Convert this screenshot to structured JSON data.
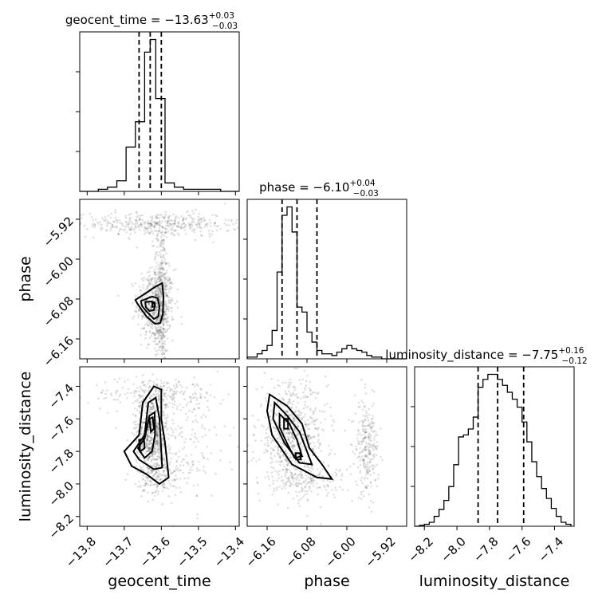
{
  "chart_data": {
    "type": "corner",
    "parameters": [
      {
        "name": "geocent_time",
        "axis_label": "geocent_time",
        "median": -13.63,
        "plus": 0.03,
        "minus": 0.03,
        "title_main": "geocent_time = −13.63",
        "title_plus": "+0.03",
        "title_minus": "−0.03",
        "range": [
          -13.82,
          -13.39
        ],
        "ticks": [
          -13.8,
          -13.7,
          -13.6,
          -13.5,
          -13.4
        ],
        "tick_labels": [
          "−13.8",
          "−13.7",
          "−13.6",
          "−13.5",
          "−13.4"
        ],
        "quantiles": [
          -13.66,
          -13.63,
          -13.6
        ],
        "hist_edges": [
          -13.82,
          -13.795,
          -13.77,
          -13.745,
          -13.72,
          -13.695,
          -13.67,
          -13.645,
          -13.63,
          -13.615,
          -13.59,
          -13.565,
          -13.54,
          -13.515,
          -13.49,
          -13.465,
          -13.44,
          -13.415,
          -13.39
        ],
        "hist_counts": [
          0,
          0,
          1,
          2,
          5,
          21,
          33,
          66,
          72,
          44,
          4,
          2,
          1,
          1,
          1,
          1,
          0,
          0
        ]
      },
      {
        "name": "phase",
        "axis_label": "phase",
        "median": -6.1,
        "plus": 0.04,
        "minus": 0.03,
        "title_main": "phase = −6.10",
        "title_plus": "+0.04",
        "title_minus": "−0.03",
        "range": [
          -6.2,
          -5.88
        ],
        "ticks": [
          -6.16,
          -6.08,
          -6.0,
          -5.92
        ],
        "tick_labels": [
          "−6.16",
          "−6.08",
          "−6.00",
          "−5.92"
        ],
        "quantiles": [
          -6.13,
          -6.1,
          -6.06
        ],
        "hist_edges": [
          -6.2,
          -6.19,
          -6.18,
          -6.17,
          -6.16,
          -6.15,
          -6.14,
          -6.13,
          -6.12,
          -6.11,
          -6.1,
          -6.09,
          -6.08,
          -6.07,
          -6.06,
          -6.05,
          -6.04,
          -6.03,
          -6.02,
          -6.01,
          -6.0,
          -5.99,
          -5.98,
          -5.97,
          -5.96,
          -5.95,
          -5.94,
          -5.93,
          -5.92,
          -5.91,
          -5.9,
          -5.89,
          -5.88
        ],
        "hist_counts": [
          1,
          1,
          3,
          5,
          8,
          17,
          52,
          86,
          91,
          76,
          31,
          28,
          16,
          10,
          5,
          3,
          3,
          2,
          4,
          6,
          8,
          6,
          5,
          4,
          2,
          1,
          1,
          0,
          0,
          0,
          0,
          0
        ]
      },
      {
        "name": "luminosity_distance",
        "axis_label": "luminosity_distance",
        "median": -7.75,
        "plus": 0.16,
        "minus": 0.12,
        "title_main": "luminosity_distance = −7.75",
        "title_plus": "+0.16",
        "title_minus": "−0.12",
        "range": [
          -8.26,
          -7.28
        ],
        "ticks": [
          -8.2,
          -8.0,
          -7.8,
          -7.6,
          -7.4
        ],
        "tick_labels": [
          "−8.2",
          "−8.0",
          "−7.8",
          "−7.6",
          "−7.4"
        ],
        "quantiles": [
          -7.87,
          -7.75,
          -7.59
        ],
        "hist_edges": [
          -8.26,
          -8.23,
          -8.2,
          -8.17,
          -8.14,
          -8.11,
          -8.08,
          -8.05,
          -8.02,
          -7.99,
          -7.96,
          -7.93,
          -7.9,
          -7.87,
          -7.84,
          -7.81,
          -7.78,
          -7.75,
          -7.72,
          -7.69,
          -7.66,
          -7.63,
          -7.6,
          -7.57,
          -7.54,
          -7.51,
          -7.48,
          -7.45,
          -7.42,
          -7.39,
          -7.36,
          -7.33,
          -7.3
        ],
        "hist_counts": [
          0,
          1,
          2,
          4,
          10,
          17,
          26,
          40,
          62,
          90,
          92,
          98,
          110,
          140,
          148,
          153,
          153,
          148,
          142,
          135,
          128,
          120,
          105,
          85,
          65,
          50,
          38,
          28,
          18,
          10,
          4,
          2
        ]
      }
    ],
    "pairs": [
      {
        "x_param": 0,
        "y_param": 1,
        "scatter_clusters": [
          {
            "mean": [
              -13.615,
              -6.09
            ],
            "sd": [
              0.025,
              0.035
            ],
            "n": 500
          },
          {
            "mean": [
              -13.61,
              -5.93
            ],
            "sd": [
              0.11,
              0.012
            ],
            "n": 420
          },
          {
            "mean": [
              -13.6,
              -6.03
            ],
            "sd": [
              0.01,
              0.05
            ],
            "n": 180
          },
          {
            "mean": [
              -13.6,
              -6.15
            ],
            "sd": [
              0.01,
              0.03
            ],
            "n": 140
          }
        ],
        "contours": [
          [
            [
              -13.67,
              -6.082
            ],
            [
              -13.615,
              -6.055
            ],
            [
              -13.598,
              -6.048
            ],
            [
              -13.594,
              -6.075
            ],
            [
              -13.596,
              -6.11
            ],
            [
              -13.603,
              -6.128
            ],
            [
              -13.617,
              -6.13
            ],
            [
              -13.64,
              -6.115
            ],
            [
              -13.664,
              -6.09
            ],
            [
              -13.67,
              -6.082
            ]
          ],
          [
            [
              -13.655,
              -6.084
            ],
            [
              -13.625,
              -6.075
            ],
            [
              -13.61,
              -6.078
            ],
            [
              -13.605,
              -6.095
            ],
            [
              -13.608,
              -6.115
            ],
            [
              -13.62,
              -6.12
            ],
            [
              -13.636,
              -6.108
            ],
            [
              -13.652,
              -6.094
            ],
            [
              -13.655,
              -6.084
            ]
          ],
          [
            [
              -13.643,
              -6.086
            ],
            [
              -13.625,
              -6.085
            ],
            [
              -13.617,
              -6.092
            ],
            [
              -13.62,
              -6.102
            ],
            [
              -13.632,
              -6.104
            ],
            [
              -13.642,
              -6.096
            ],
            [
              -13.643,
              -6.086
            ]
          ],
          [
            [
              -13.625,
              -6.086
            ],
            [
              -13.618,
              -6.087
            ],
            [
              -13.617,
              -6.094
            ],
            [
              -13.624,
              -6.096
            ],
            [
              -13.625,
              -6.086
            ]
          ]
        ]
      },
      {
        "x_param": 0,
        "y_param": 2,
        "scatter_clusters": [
          {
            "mean": [
              -13.625,
              -7.7
            ],
            "sd": [
              0.022,
              0.13
            ],
            "n": 650
          },
          {
            "mean": [
              -13.6,
              -7.95
            ],
            "sd": [
              0.03,
              0.06
            ],
            "n": 150
          },
          {
            "mean": [
              -13.61,
              -7.45
            ],
            "sd": [
              0.09,
              0.05
            ],
            "n": 220
          },
          {
            "mean": [
              -13.53,
              -7.75
            ],
            "sd": [
              0.06,
              0.2
            ],
            "n": 150
          }
        ],
        "contours": [
          [
            [
              -13.7,
              -7.8
            ],
            [
              -13.66,
              -7.7
            ],
            [
              -13.65,
              -7.5
            ],
            [
              -13.62,
              -7.4
            ],
            [
              -13.6,
              -7.42
            ],
            [
              -13.6,
              -7.6
            ],
            [
              -13.59,
              -7.75
            ],
            [
              -13.58,
              -7.96
            ],
            [
              -13.605,
              -8.0
            ],
            [
              -13.64,
              -7.94
            ],
            [
              -13.68,
              -7.89
            ],
            [
              -13.7,
              -7.8
            ]
          ],
          [
            [
              -13.675,
              -7.8
            ],
            [
              -13.645,
              -7.7
            ],
            [
              -13.635,
              -7.5
            ],
            [
              -13.615,
              -7.47
            ],
            [
              -13.605,
              -7.6
            ],
            [
              -13.6,
              -7.8
            ],
            [
              -13.598,
              -7.9
            ],
            [
              -13.62,
              -7.91
            ],
            [
              -13.66,
              -7.85
            ],
            [
              -13.675,
              -7.8
            ]
          ],
          [
            [
              -13.663,
              -7.78
            ],
            [
              -13.645,
              -7.72
            ],
            [
              -13.632,
              -7.58
            ],
            [
              -13.618,
              -7.56
            ],
            [
              -13.617,
              -7.7
            ],
            [
              -13.625,
              -7.8
            ],
            [
              -13.645,
              -7.84
            ],
            [
              -13.663,
              -7.78
            ]
          ],
          [
            [
              -13.632,
              -7.6
            ],
            [
              -13.623,
              -7.59
            ],
            [
              -13.62,
              -7.66
            ],
            [
              -13.628,
              -7.68
            ],
            [
              -13.632,
              -7.6
            ]
          ],
          [
            [
              -13.66,
              -7.73
            ],
            [
              -13.647,
              -7.72
            ],
            [
              -13.645,
              -7.78
            ],
            [
              -13.657,
              -7.8
            ],
            [
              -13.66,
              -7.73
            ]
          ]
        ]
      },
      {
        "x_param": 1,
        "y_param": 2,
        "scatter_clusters": [
          {
            "mean": [
              -6.11,
              -7.7
            ],
            "sd": [
              0.035,
              0.16
            ],
            "n": 650
          },
          {
            "mean": [
              -5.96,
              -7.78
            ],
            "sd": [
              0.012,
              0.14
            ],
            "n": 260
          },
          {
            "mean": [
              -6.08,
              -7.98
            ],
            "sd": [
              0.04,
              0.05
            ],
            "n": 150
          }
        ],
        "contours": [
          [
            [
              -6.155,
              -7.45
            ],
            [
              -6.12,
              -7.52
            ],
            [
              -6.09,
              -7.63
            ],
            [
              -6.075,
              -7.78
            ],
            [
              -6.05,
              -7.88
            ],
            [
              -6.03,
              -7.97
            ],
            [
              -6.06,
              -7.96
            ],
            [
              -6.11,
              -7.88
            ],
            [
              -6.15,
              -7.7
            ],
            [
              -6.16,
              -7.55
            ],
            [
              -6.155,
              -7.45
            ]
          ],
          [
            [
              -6.145,
              -7.5
            ],
            [
              -6.12,
              -7.58
            ],
            [
              -6.095,
              -7.68
            ],
            [
              -6.08,
              -7.8
            ],
            [
              -6.07,
              -7.88
            ],
            [
              -6.095,
              -7.87
            ],
            [
              -6.125,
              -7.75
            ],
            [
              -6.148,
              -7.6
            ],
            [
              -6.145,
              -7.5
            ]
          ],
          [
            [
              -6.135,
              -7.57
            ],
            [
              -6.115,
              -7.63
            ],
            [
              -6.1,
              -7.73
            ],
            [
              -6.09,
              -7.83
            ],
            [
              -6.105,
              -7.84
            ],
            [
              -6.12,
              -7.75
            ],
            [
              -6.135,
              -7.65
            ],
            [
              -6.135,
              -7.57
            ]
          ],
          [
            [
              -6.103,
              -7.81
            ],
            [
              -6.094,
              -7.81
            ],
            [
              -6.092,
              -7.85
            ],
            [
              -6.102,
              -7.85
            ],
            [
              -6.103,
              -7.81
            ]
          ],
          [
            [
              -6.126,
              -7.6
            ],
            [
              -6.118,
              -7.6
            ],
            [
              -6.118,
              -7.66
            ],
            [
              -6.126,
              -7.66
            ],
            [
              -6.126,
              -7.6
            ]
          ]
        ]
      }
    ]
  }
}
